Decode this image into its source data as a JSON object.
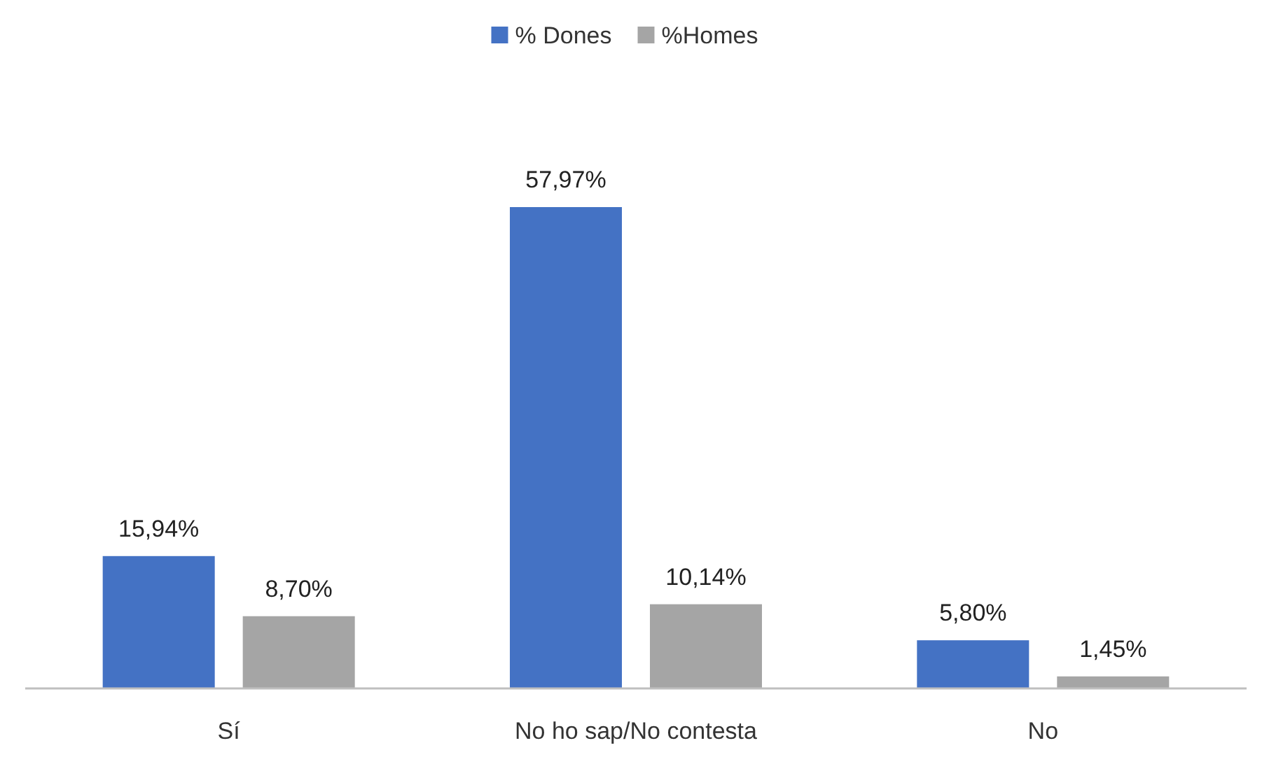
{
  "chart_data": {
    "type": "bar",
    "categories": [
      "Sí",
      "No ho sap/No contesta",
      "No"
    ],
    "series": [
      {
        "name": "% Dones",
        "color": "#4472c4",
        "values": [
          15.94,
          57.97,
          5.8
        ],
        "value_labels": [
          "15,94%",
          "57,97%",
          "5,80%"
        ]
      },
      {
        "name": "%Homes",
        "color": "#a5a5a5",
        "values": [
          8.7,
          10.14,
          1.45
        ],
        "value_labels": [
          "8,70%",
          "10,14%",
          "1,45%"
        ]
      }
    ],
    "legend": "top"
  }
}
